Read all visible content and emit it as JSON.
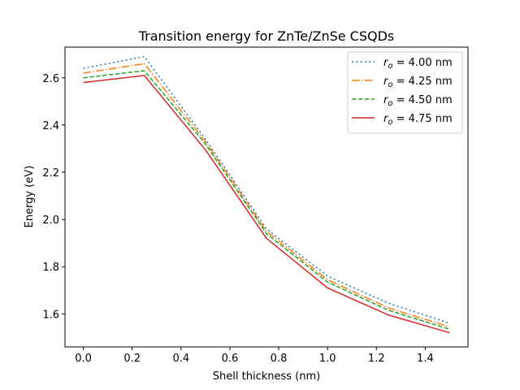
{
  "chart_data": {
    "type": "line",
    "title": "Transition energy for ZnTe/ZnSe CSQDs",
    "xlabel": "Shell thickness (nm)",
    "ylabel": "Energy (eV)",
    "xlim": [
      -0.075,
      1.575
    ],
    "ylim": [
      1.46,
      2.73
    ],
    "x": [
      0.0,
      0.25,
      0.5,
      0.75,
      1.0,
      1.25,
      1.5
    ],
    "xticks": [
      0.0,
      0.2,
      0.4,
      0.6,
      0.8,
      1.0,
      1.2,
      1.4
    ],
    "xtick_labels": [
      "0.0",
      "0.2",
      "0.4",
      "0.6",
      "0.8",
      "1.0",
      "1.2",
      "1.4"
    ],
    "yticks": [
      1.6,
      1.8,
      2.0,
      2.2,
      2.4,
      2.6
    ],
    "ytick_labels": [
      "1.6",
      "1.8",
      "2.0",
      "2.2",
      "2.4",
      "2.6"
    ],
    "grid": false,
    "legend_position": "top-right",
    "series": [
      {
        "name": "r_o = 4.00 nm",
        "label_var": "r",
        "label_sub": "o",
        "label_rest": " = 4.00 nm",
        "color": "#1f77b4",
        "style": "dotted",
        "values": [
          2.64,
          2.69,
          2.34,
          1.96,
          1.76,
          1.645,
          1.56
        ]
      },
      {
        "name": "r_o = 4.25 nm",
        "label_var": "r",
        "label_sub": "o",
        "label_rest": " = 4.25 nm",
        "color": "#ff7f0e",
        "style": "dashdot",
        "values": [
          2.62,
          2.66,
          2.33,
          1.95,
          1.745,
          1.625,
          1.545
        ]
      },
      {
        "name": "r_o = 4.50 nm",
        "label_var": "r",
        "label_sub": "o",
        "label_rest": " = 4.50 nm",
        "color": "#2ca02c",
        "style": "dashed",
        "values": [
          2.6,
          2.63,
          2.32,
          1.94,
          1.735,
          1.615,
          1.535
        ]
      },
      {
        "name": "r_o = 4.75 nm",
        "label_var": "r",
        "label_sub": "o",
        "label_rest": " = 4.75 nm",
        "color": "#d62728",
        "style": "solid",
        "values": [
          2.58,
          2.61,
          2.295,
          1.92,
          1.71,
          1.595,
          1.52
        ]
      }
    ]
  }
}
